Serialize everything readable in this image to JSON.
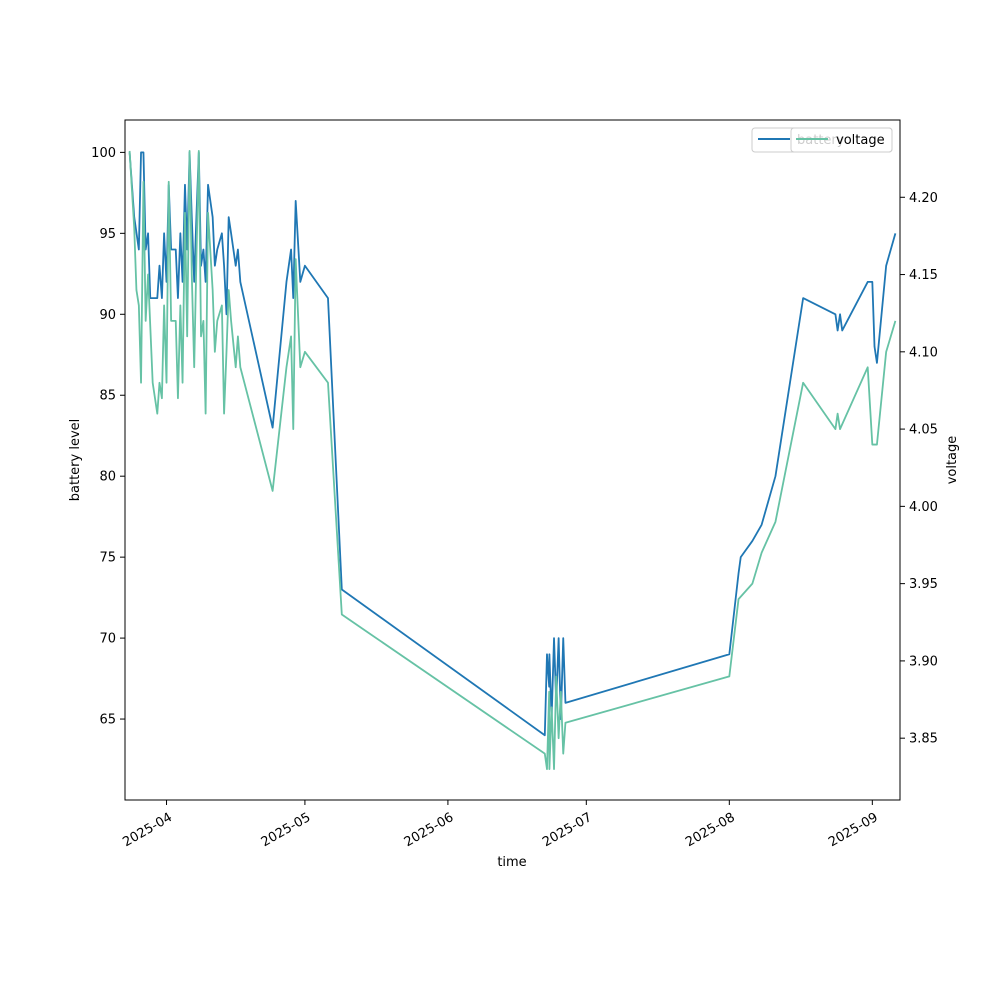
{
  "chart_data": {
    "type": "line",
    "xlabel": "time",
    "ylabel_left": "battery level",
    "ylabel_right": "voltage",
    "xlim": [
      "2025-03-23",
      "2025-09-07"
    ],
    "ylim_left": [
      60,
      102
    ],
    "ylim_right": [
      3.81,
      4.25
    ],
    "x_ticks": [
      "2025-04",
      "2025-05",
      "2025-06",
      "2025-07",
      "2025-08",
      "2025-09"
    ],
    "y_ticks_left": [
      "65",
      "70",
      "75",
      "80",
      "85",
      "90",
      "95",
      "100"
    ],
    "y_ticks_right": [
      "3.85",
      "3.90",
      "3.95",
      "4.00",
      "4.05",
      "4.10",
      "4.15",
      "4.20"
    ],
    "legend_placement": "top-right",
    "grid": false,
    "colors": {
      "battery": "#1f77b4",
      "voltage": "#66c2a5"
    },
    "series": [
      {
        "name": "battery",
        "axis": "left",
        "points": [
          [
            "2025-03-24",
            100
          ],
          [
            "2025-03-25",
            96
          ],
          [
            "2025-03-26",
            94
          ],
          [
            "2025-03-26",
            100
          ],
          [
            "2025-03-27",
            100
          ],
          [
            "2025-03-27",
            94
          ],
          [
            "2025-03-28",
            95
          ],
          [
            "2025-03-28",
            91
          ],
          [
            "2025-03-29",
            91
          ],
          [
            "2025-03-30",
            91
          ],
          [
            "2025-03-30",
            93
          ],
          [
            "2025-03-31",
            91
          ],
          [
            "2025-03-31",
            95
          ],
          [
            "2025-04-01",
            92
          ],
          [
            "2025-04-01",
            98
          ],
          [
            "2025-04-02",
            94
          ],
          [
            "2025-04-03",
            94
          ],
          [
            "2025-04-03",
            91
          ],
          [
            "2025-04-04",
            95
          ],
          [
            "2025-04-04",
            92
          ],
          [
            "2025-04-05",
            98
          ],
          [
            "2025-04-05",
            94
          ],
          [
            "2025-04-06",
            100
          ],
          [
            "2025-04-06",
            96
          ],
          [
            "2025-04-07",
            92
          ],
          [
            "2025-04-07",
            96
          ],
          [
            "2025-04-08",
            100
          ],
          [
            "2025-04-08",
            93
          ],
          [
            "2025-04-09",
            94
          ],
          [
            "2025-04-09",
            92
          ],
          [
            "2025-04-10",
            98
          ],
          [
            "2025-04-11",
            96
          ],
          [
            "2025-04-11",
            93
          ],
          [
            "2025-04-12",
            94
          ],
          [
            "2025-04-13",
            95
          ],
          [
            "2025-04-13",
            93
          ],
          [
            "2025-04-14",
            90
          ],
          [
            "2025-04-14",
            96
          ],
          [
            "2025-04-15",
            95
          ],
          [
            "2025-04-16",
            93
          ],
          [
            "2025-04-16",
            94
          ],
          [
            "2025-04-17",
            92
          ],
          [
            "2025-04-24",
            83
          ],
          [
            "2025-04-27",
            92
          ],
          [
            "2025-04-28",
            94
          ],
          [
            "2025-04-28",
            91
          ],
          [
            "2025-04-29",
            97
          ],
          [
            "2025-04-30",
            92
          ],
          [
            "2025-05-01",
            93
          ],
          [
            "2025-05-06",
            91
          ],
          [
            "2025-05-09",
            73
          ],
          [
            "2025-06-22",
            64
          ],
          [
            "2025-06-22",
            69
          ],
          [
            "2025-06-22",
            67
          ],
          [
            "2025-06-23",
            69
          ],
          [
            "2025-06-23",
            65
          ],
          [
            "2025-06-24",
            70
          ],
          [
            "2025-06-24",
            66
          ],
          [
            "2025-06-25",
            70
          ],
          [
            "2025-06-25",
            65
          ],
          [
            "2025-06-26",
            70
          ],
          [
            "2025-06-26",
            66
          ],
          [
            "2025-08-01",
            69
          ],
          [
            "2025-08-03",
            74
          ],
          [
            "2025-08-03",
            75
          ],
          [
            "2025-08-06",
            76
          ],
          [
            "2025-08-08",
            77
          ],
          [
            "2025-08-11",
            80
          ],
          [
            "2025-08-17",
            91
          ],
          [
            "2025-08-24",
            90
          ],
          [
            "2025-08-24",
            89
          ],
          [
            "2025-08-25",
            90
          ],
          [
            "2025-08-25",
            89
          ],
          [
            "2025-08-31",
            92
          ],
          [
            "2025-09-01",
            92
          ],
          [
            "2025-09-01",
            88
          ],
          [
            "2025-09-02",
            87
          ],
          [
            "2025-09-04",
            93
          ],
          [
            "2025-09-06",
            95
          ]
        ]
      },
      {
        "name": "voltage",
        "axis": "right",
        "points": [
          [
            "2025-03-24",
            4.23
          ],
          [
            "2025-03-25",
            4.18
          ],
          [
            "2025-03-25",
            4.14
          ],
          [
            "2025-03-26",
            4.13
          ],
          [
            "2025-03-26",
            4.08
          ],
          [
            "2025-03-27",
            4.21
          ],
          [
            "2025-03-27",
            4.12
          ],
          [
            "2025-03-28",
            4.15
          ],
          [
            "2025-03-29",
            4.08
          ],
          [
            "2025-03-30",
            4.06
          ],
          [
            "2025-03-30",
            4.08
          ],
          [
            "2025-03-31",
            4.07
          ],
          [
            "2025-03-31",
            4.13
          ],
          [
            "2025-04-01",
            4.08
          ],
          [
            "2025-04-01",
            4.21
          ],
          [
            "2025-04-02",
            4.12
          ],
          [
            "2025-04-03",
            4.12
          ],
          [
            "2025-04-03",
            4.07
          ],
          [
            "2025-04-04",
            4.13
          ],
          [
            "2025-04-04",
            4.08
          ],
          [
            "2025-04-05",
            4.19
          ],
          [
            "2025-04-05",
            4.11
          ],
          [
            "2025-04-06",
            4.23
          ],
          [
            "2025-04-06",
            4.15
          ],
          [
            "2025-04-07",
            4.09
          ],
          [
            "2025-04-07",
            4.16
          ],
          [
            "2025-04-08",
            4.23
          ],
          [
            "2025-04-08",
            4.11
          ],
          [
            "2025-04-09",
            4.12
          ],
          [
            "2025-04-09",
            4.06
          ],
          [
            "2025-04-10",
            4.19
          ],
          [
            "2025-04-11",
            4.14
          ],
          [
            "2025-04-11",
            4.1
          ],
          [
            "2025-04-12",
            4.12
          ],
          [
            "2025-04-13",
            4.13
          ],
          [
            "2025-04-13",
            4.06
          ],
          [
            "2025-04-14",
            4.1
          ],
          [
            "2025-04-14",
            4.14
          ],
          [
            "2025-04-15",
            4.12
          ],
          [
            "2025-04-16",
            4.09
          ],
          [
            "2025-04-16",
            4.11
          ],
          [
            "2025-04-17",
            4.09
          ],
          [
            "2025-04-24",
            4.01
          ],
          [
            "2025-04-27",
            4.09
          ],
          [
            "2025-04-28",
            4.11
          ],
          [
            "2025-04-28",
            4.05
          ],
          [
            "2025-04-29",
            4.16
          ],
          [
            "2025-04-30",
            4.09
          ],
          [
            "2025-05-01",
            4.1
          ],
          [
            "2025-05-06",
            4.08
          ],
          [
            "2025-05-09",
            3.93
          ],
          [
            "2025-06-22",
            3.84
          ],
          [
            "2025-06-22",
            3.83
          ],
          [
            "2025-06-22",
            3.88
          ],
          [
            "2025-06-23",
            3.83
          ],
          [
            "2025-06-23",
            3.87
          ],
          [
            "2025-06-24",
            3.83
          ],
          [
            "2025-06-24",
            3.89
          ],
          [
            "2025-06-25",
            3.85
          ],
          [
            "2025-06-25",
            3.88
          ],
          [
            "2025-06-26",
            3.84
          ],
          [
            "2025-06-26",
            3.86
          ],
          [
            "2025-08-01",
            3.89
          ],
          [
            "2025-08-03",
            3.94
          ],
          [
            "2025-08-06",
            3.95
          ],
          [
            "2025-08-08",
            3.97
          ],
          [
            "2025-08-11",
            3.99
          ],
          [
            "2025-08-17",
            4.08
          ],
          [
            "2025-08-24",
            4.05
          ],
          [
            "2025-08-24",
            4.06
          ],
          [
            "2025-08-25",
            4.05
          ],
          [
            "2025-08-31",
            4.09
          ],
          [
            "2025-09-01",
            4.04
          ],
          [
            "2025-09-02",
            4.04
          ],
          [
            "2025-09-04",
            4.1
          ],
          [
            "2025-09-06",
            4.12
          ]
        ]
      }
    ]
  }
}
